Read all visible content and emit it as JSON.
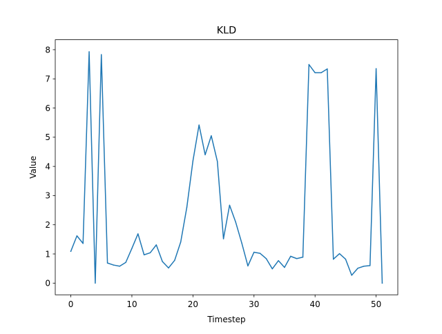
{
  "chart_data": {
    "type": "line",
    "title": "KLD",
    "xlabel": "Timestep",
    "ylabel": "Value",
    "xlim": [
      -2.55,
      53.55
    ],
    "ylim": [
      -0.4,
      8.34
    ],
    "xticks": [
      0,
      10,
      20,
      30,
      40,
      50
    ],
    "yticks": [
      0,
      1,
      2,
      3,
      4,
      5,
      6,
      7,
      8
    ],
    "grid": false,
    "legend": "none",
    "series": [
      {
        "color": "#1f77b4",
        "x": [
          0,
          1,
          2,
          3,
          4,
          5,
          6,
          7,
          8,
          9,
          10,
          11,
          12,
          13,
          14,
          15,
          16,
          17,
          18,
          19,
          20,
          21,
          22,
          23,
          24,
          25,
          26,
          27,
          28,
          29,
          30,
          31,
          32,
          33,
          34,
          35,
          36,
          37,
          38,
          39,
          40,
          41,
          42,
          43,
          44,
          45,
          46,
          47,
          48,
          49,
          50,
          51
        ],
        "values": [
          1.09,
          1.62,
          1.36,
          7.93,
          0.0,
          7.83,
          0.69,
          0.62,
          0.58,
          0.71,
          1.19,
          1.69,
          0.97,
          1.04,
          1.31,
          0.74,
          0.52,
          0.78,
          1.41,
          2.6,
          4.19,
          5.42,
          4.4,
          5.05,
          4.17,
          1.52,
          2.67,
          2.09,
          1.37,
          0.59,
          1.06,
          1.02,
          0.84,
          0.49,
          0.77,
          0.54,
          0.92,
          0.84,
          0.89,
          7.49,
          7.21,
          7.21,
          7.34,
          0.82,
          1.01,
          0.82,
          0.27,
          0.51,
          0.58,
          0.6,
          7.35,
          0.0
        ]
      }
    ]
  }
}
